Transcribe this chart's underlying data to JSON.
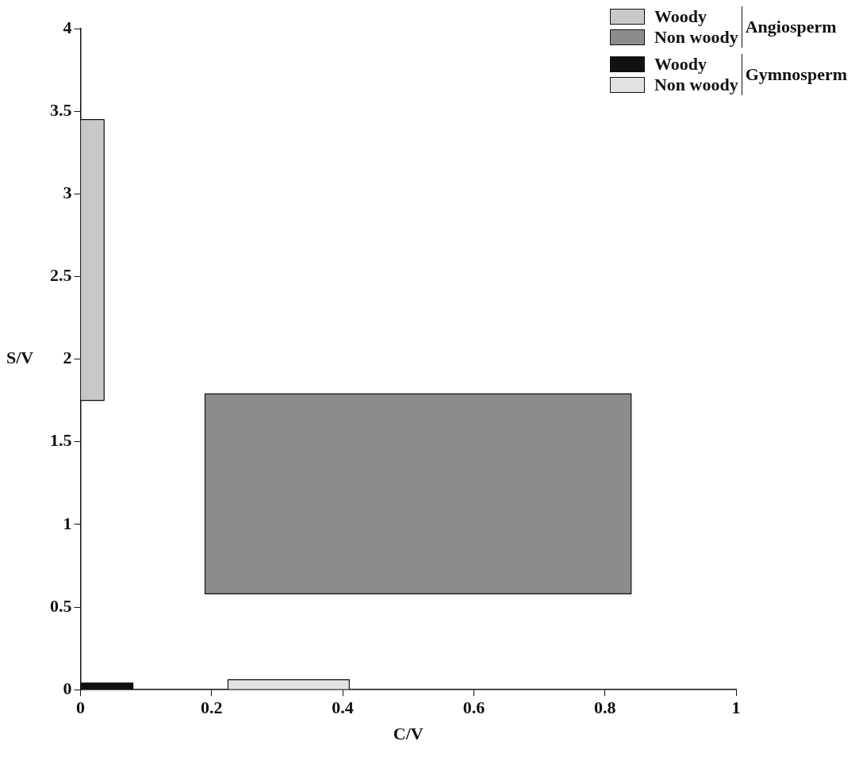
{
  "chart_data": {
    "type": "area",
    "xlabel": "C/V",
    "ylabel": "S/V",
    "xlim": [
      0,
      1
    ],
    "xticks": [
      0,
      0.2,
      0.4,
      0.6,
      0.8,
      1
    ],
    "ylim": [
      0,
      4
    ],
    "yticks": [
      0,
      0.5,
      1,
      1.5,
      2,
      2.5,
      3,
      3.5,
      4
    ],
    "grid": false,
    "legend": "top right",
    "marker": "none",
    "series": [
      {
        "name": "Woody",
        "color": "#c8c8c8",
        "x": [
          0,
          0.036,
          0.036,
          0,
          0
        ],
        "values": [
          1.75,
          1.75,
          3.45,
          3.45,
          1.75
        ]
      },
      {
        "name": "Non woody",
        "color": "#8c8c8c",
        "x": [
          0.19,
          0.84,
          0.84,
          0.19,
          0.19
        ],
        "values": [
          0.58,
          0.58,
          1.79,
          1.79,
          0.58
        ]
      },
      {
        "name": "Woody",
        "color": "#111111",
        "x": [
          0,
          0.08,
          0.08,
          0,
          0
        ],
        "values": [
          0,
          0,
          0.04,
          0.04,
          0
        ]
      },
      {
        "name": "Non woody",
        "color": "#e2e2e2",
        "x": [
          0.225,
          0.41,
          0.41,
          0.225,
          0.225
        ],
        "values": [
          0,
          0,
          0.06,
          0.06,
          0
        ]
      }
    ],
    "annotations": [
      "Angiosperm",
      "Gymnosperm"
    ]
  }
}
